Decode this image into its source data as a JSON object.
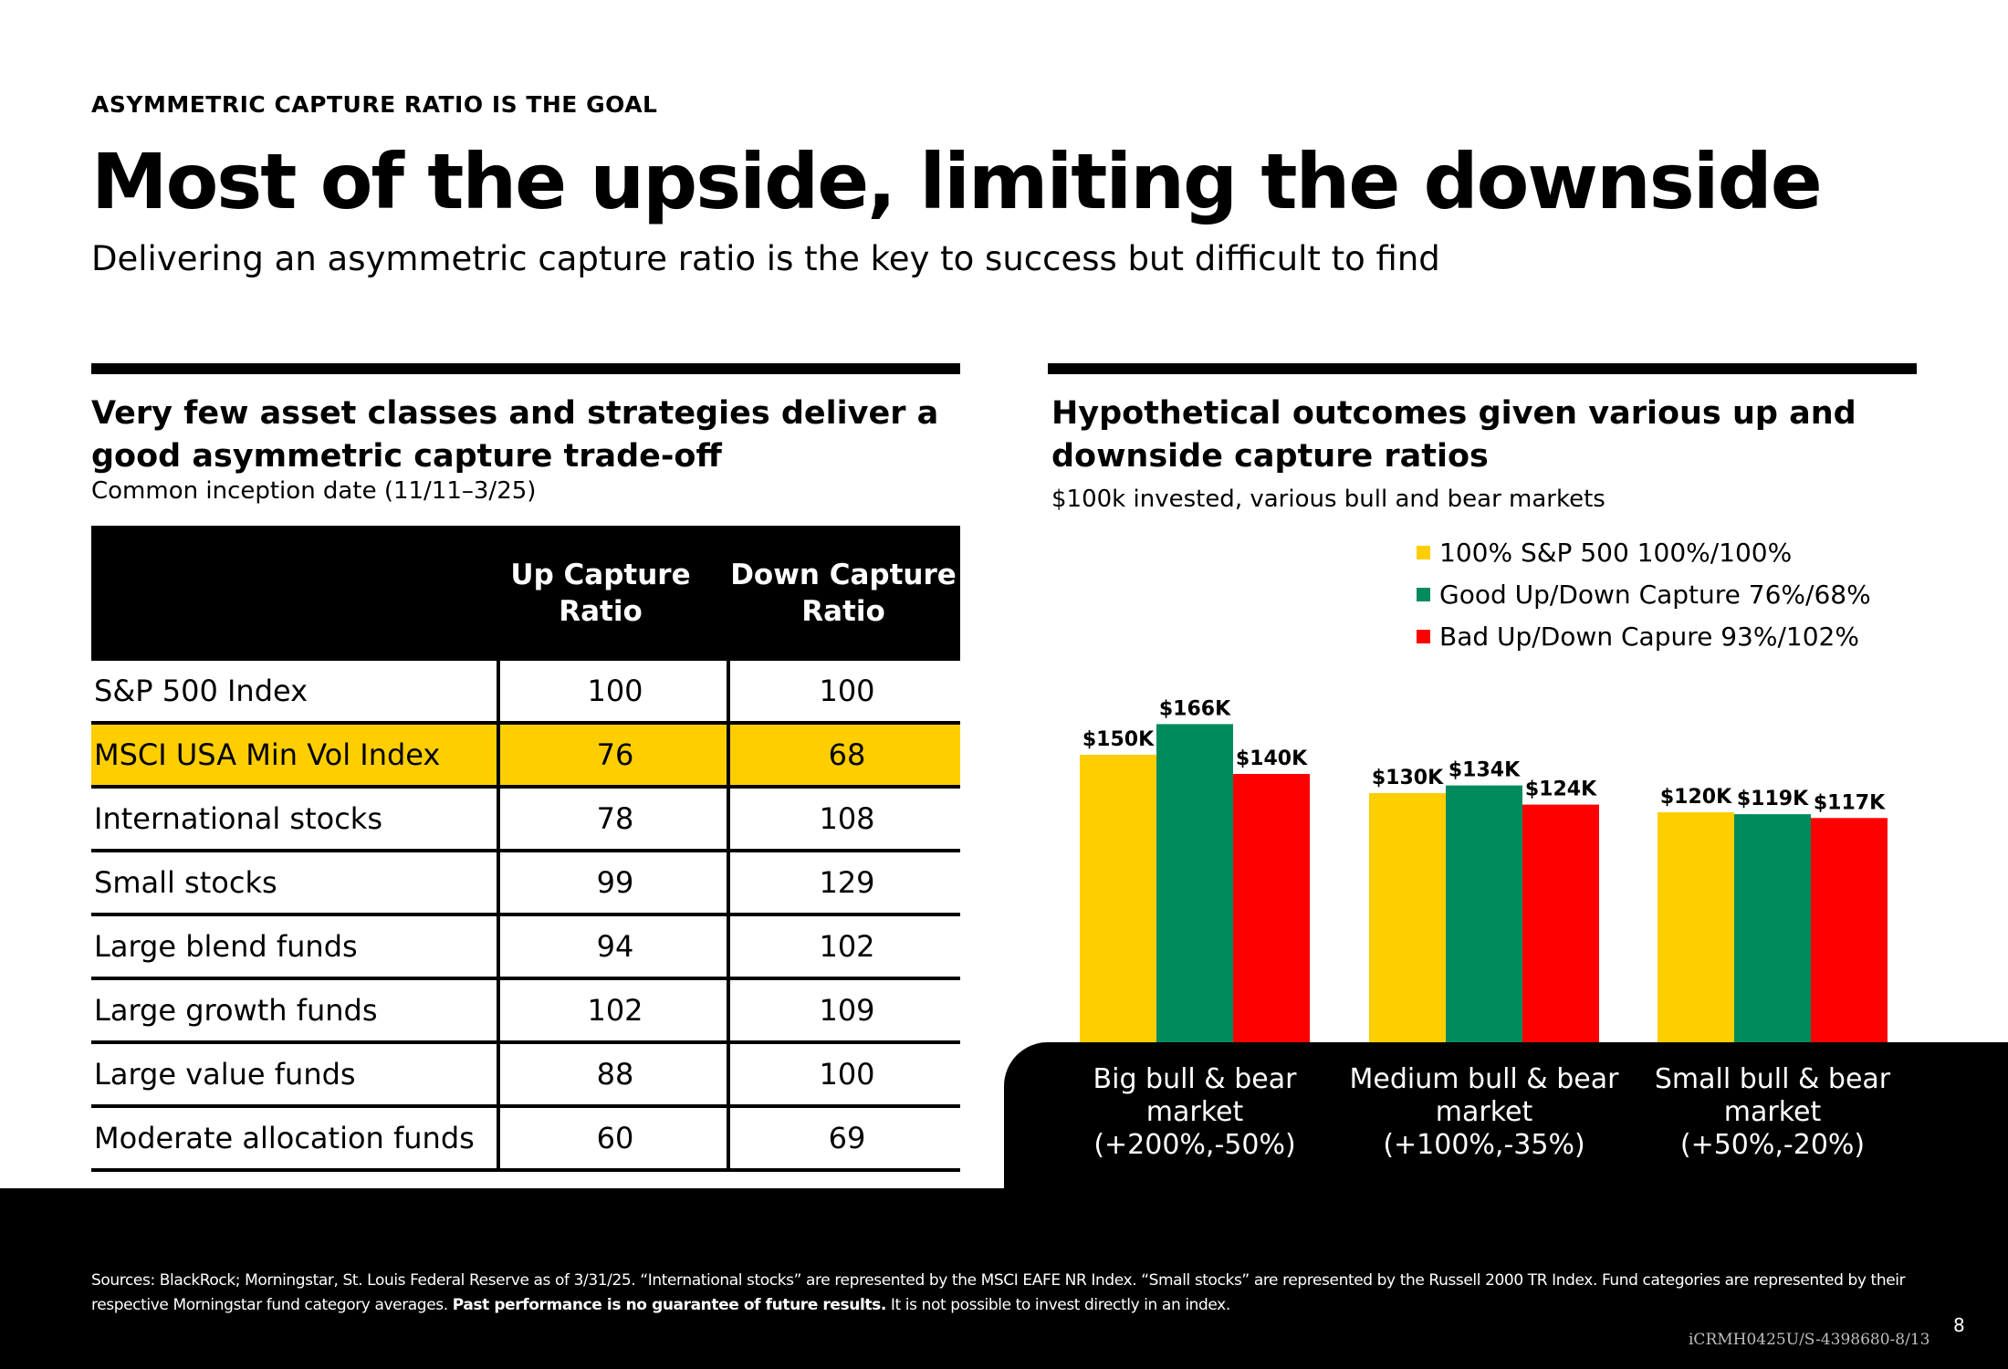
{
  "header": {
    "eyebrow": "ASYMMETRIC CAPTURE RATIO IS THE GOAL",
    "title": "Most of the upside, limiting the downside",
    "subtitle": "Delivering an asymmetric capture ratio is the key to success but difficult to find"
  },
  "left_panel": {
    "title_line1": "Very few asset classes and strategies deliver a",
    "title_line2": "good asymmetric capture trade-off",
    "subtitle": "Common inception date (11/11–3/25)",
    "table": {
      "col_up_line1": "Up Capture",
      "col_up_line2": "Ratio",
      "col_down_line1": "Down Capture",
      "col_down_line2": "Ratio",
      "rows": [
        {
          "name": "S&P 500 Index",
          "up": "100",
          "down": "100"
        },
        {
          "name": "MSCI USA Min Vol Index",
          "up": "76",
          "down": "68"
        },
        {
          "name": "International stocks",
          "up": "78",
          "down": "108"
        },
        {
          "name": "Small stocks",
          "up": "99",
          "down": "129"
        },
        {
          "name": "Large blend funds",
          "up": "94",
          "down": "102"
        },
        {
          "name": "Large growth funds",
          "up": "102",
          "down": "109"
        },
        {
          "name": "Large value funds",
          "up": "88",
          "down": "100"
        },
        {
          "name": "Moderate allocation funds",
          "up": "60",
          "down": "69"
        }
      ]
    }
  },
  "right_panel": {
    "title_line1": "Hypothetical outcomes given various up and",
    "title_line2": "downside capture ratios",
    "subtitle": "$100k invested, various bull and bear markets"
  },
  "chart_data": {
    "type": "bar",
    "title": "Hypothetical outcomes given various up and downside capture ratios",
    "ylabel": "",
    "ylim": [
      0,
      180
    ],
    "legend_position": "top-right",
    "categories": [
      [
        "Big bull & bear",
        "market",
        "(+200%,-50%)"
      ],
      [
        "Medium bull & bear",
        "market",
        "(+100%,-35%)"
      ],
      [
        "Small bull & bear",
        "market",
        "(+50%,-20%)"
      ]
    ],
    "series": [
      {
        "name": "100% S&P 500 100%/100%",
        "color": "#FFCE00",
        "values": [
          150,
          130,
          120
        ],
        "labels": [
          "$150K",
          "$130K",
          "$120K"
        ]
      },
      {
        "name": "Good Up/Down Capture 76%/68%",
        "color": "#008B5D",
        "values": [
          166,
          134,
          119
        ],
        "labels": [
          "$166K",
          "$134K",
          "$119K"
        ]
      },
      {
        "name": "Bad Up/Down Capure 93%/102%",
        "color": "#FF0000",
        "values": [
          140,
          124,
          117
        ],
        "labels": [
          "$140K",
          "$124K",
          "$117K"
        ]
      }
    ]
  },
  "footer": {
    "sources_pre": "Sources: BlackRock; Morningstar, St. Louis Federal Reserve as of 3/31/25. “International stocks” are represented by the MSCI EAFE NR Index. “Small stocks” are represented by the Russell 2000 TR Index. Fund categories are represented by their respective Morningstar fund category averages. ",
    "sources_bold": "Past performance is no guarantee of future results.",
    "sources_post": " It is not possible to invest directly in an index.",
    "page_number": "8",
    "code": "iCRMH0425U/S-4398680-8/13"
  }
}
